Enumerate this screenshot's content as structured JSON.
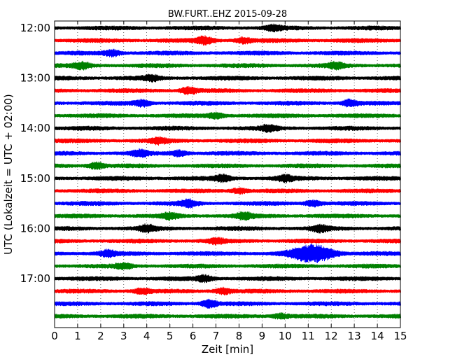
{
  "chart_data": {
    "type": "line",
    "title": "BW.FURT..EHZ 2015-09-28",
    "xlabel": "Zeit  [min]",
    "ylabel": "UTC (Lokalzeit = UTC + 02:00)",
    "xlim": [
      0,
      15
    ],
    "x_ticks": [
      "0",
      "1",
      "2",
      "3",
      "4",
      "5",
      "6",
      "7",
      "8",
      "9",
      "10",
      "11",
      "12",
      "13",
      "14",
      "15"
    ],
    "y_ticks": [
      "12:00",
      "13:00",
      "14:00",
      "15:00",
      "16:00",
      "17:00"
    ],
    "trace_interval_min": 15,
    "grid": "vertical dotted at each minute",
    "colors": [
      "#000000",
      "#ff0000",
      "#0000ff",
      "#008000"
    ],
    "series": [
      {
        "start": "12:00",
        "color": "#000000",
        "events": [
          {
            "t": 9.5,
            "amp": 1.2
          }
        ]
      },
      {
        "start": "12:15",
        "color": "#ff0000",
        "events": [
          {
            "t": 6.5,
            "amp": 1.8
          },
          {
            "t": 8.2,
            "amp": 1.3
          }
        ]
      },
      {
        "start": "12:30",
        "color": "#0000ff",
        "events": [
          {
            "t": 2.5,
            "amp": 1.5
          }
        ]
      },
      {
        "start": "12:45",
        "color": "#008000",
        "events": [
          {
            "t": 1.2,
            "amp": 1.5
          },
          {
            "t": 12.2,
            "amp": 1.4
          }
        ]
      },
      {
        "start": "13:00",
        "color": "#000000",
        "events": [
          {
            "t": 4.2,
            "amp": 1.2
          }
        ]
      },
      {
        "start": "13:15",
        "color": "#ff0000",
        "events": [
          {
            "t": 5.8,
            "amp": 1.6
          }
        ]
      },
      {
        "start": "13:30",
        "color": "#0000ff",
        "events": [
          {
            "t": 3.8,
            "amp": 1.5
          },
          {
            "t": 12.8,
            "amp": 1.6
          }
        ]
      },
      {
        "start": "13:45",
        "color": "#008000",
        "events": [
          {
            "t": 7.0,
            "amp": 1.3
          }
        ]
      },
      {
        "start": "14:00",
        "color": "#000000",
        "events": [
          {
            "t": 9.3,
            "amp": 1.4
          }
        ]
      },
      {
        "start": "14:15",
        "color": "#ff0000",
        "events": [
          {
            "t": 4.5,
            "amp": 1.3
          }
        ]
      },
      {
        "start": "14:30",
        "color": "#0000ff",
        "events": [
          {
            "t": 3.7,
            "amp": 1.4
          },
          {
            "t": 5.4,
            "amp": 1.3
          }
        ]
      },
      {
        "start": "14:45",
        "color": "#008000",
        "events": [
          {
            "t": 1.8,
            "amp": 1.5
          }
        ]
      },
      {
        "start": "15:00",
        "color": "#000000",
        "events": [
          {
            "t": 7.3,
            "amp": 1.5
          },
          {
            "t": 10.0,
            "amp": 1.3
          }
        ]
      },
      {
        "start": "15:15",
        "color": "#ff0000",
        "events": [
          {
            "t": 8.0,
            "amp": 1.2
          }
        ]
      },
      {
        "start": "15:30",
        "color": "#0000ff",
        "events": [
          {
            "t": 5.8,
            "amp": 1.6
          },
          {
            "t": 11.2,
            "amp": 1.4
          }
        ]
      },
      {
        "start": "15:45",
        "color": "#008000",
        "events": [
          {
            "t": 8.2,
            "amp": 1.6
          },
          {
            "t": 5.0,
            "amp": 1.3
          }
        ]
      },
      {
        "start": "16:00",
        "color": "#000000",
        "events": [
          {
            "t": 4.0,
            "amp": 1.5
          },
          {
            "t": 11.5,
            "amp": 1.4
          }
        ]
      },
      {
        "start": "16:15",
        "color": "#ff0000",
        "events": [
          {
            "t": 7.0,
            "amp": 1.2
          }
        ]
      },
      {
        "start": "16:30",
        "color": "#0000ff",
        "events": [
          {
            "t": 11.2,
            "amp": 4.2
          },
          {
            "t": 2.3,
            "amp": 1.4
          }
        ]
      },
      {
        "start": "16:45",
        "color": "#008000",
        "events": [
          {
            "t": 3.0,
            "amp": 1.2
          }
        ]
      },
      {
        "start": "17:00",
        "color": "#000000",
        "events": [
          {
            "t": 6.5,
            "amp": 1.4
          }
        ]
      },
      {
        "start": "17:15",
        "color": "#ff0000",
        "events": [
          {
            "t": 3.8,
            "amp": 1.3
          },
          {
            "t": 7.3,
            "amp": 1.4
          }
        ]
      },
      {
        "start": "17:30",
        "color": "#0000ff",
        "events": [
          {
            "t": 6.7,
            "amp": 1.8
          }
        ]
      },
      {
        "start": "17:45",
        "color": "#008000",
        "events": [
          {
            "t": 9.8,
            "amp": 1.2
          }
        ]
      }
    ]
  }
}
